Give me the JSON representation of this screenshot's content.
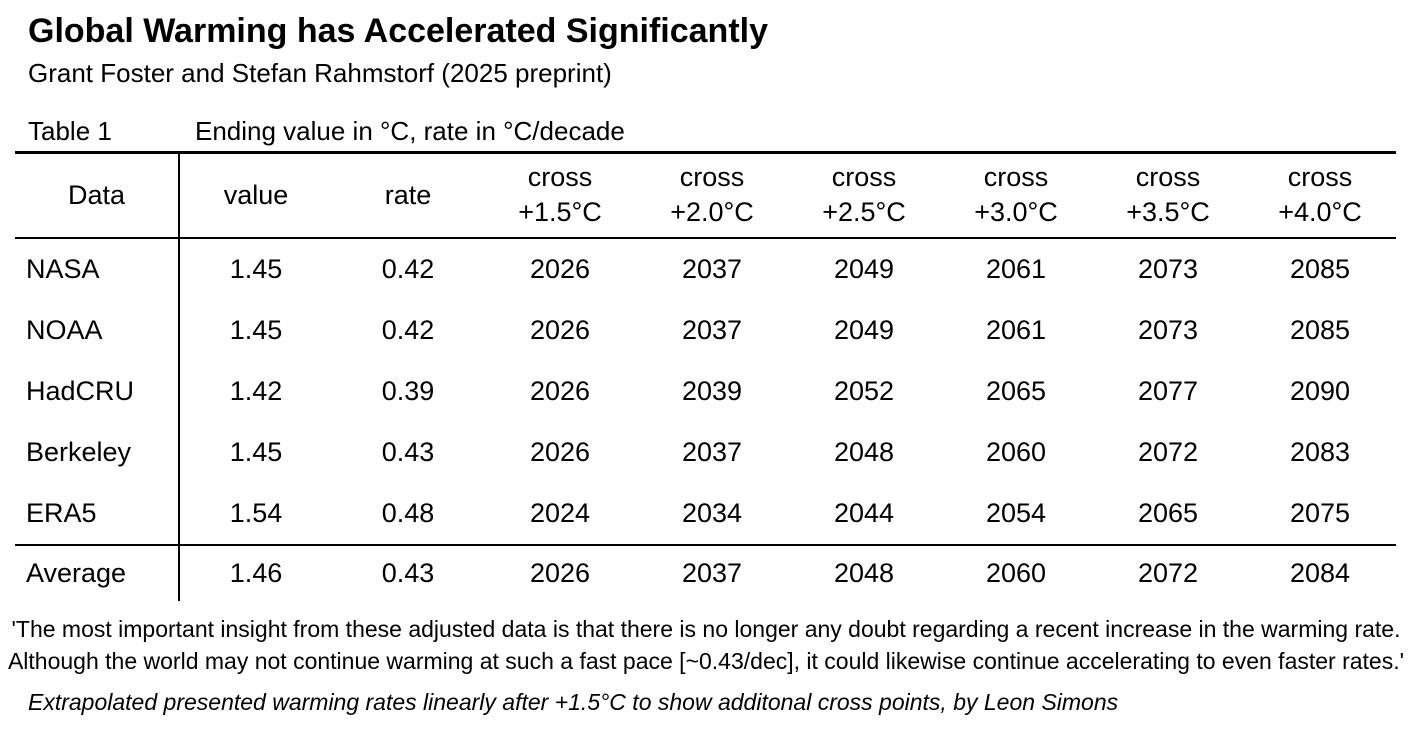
{
  "header": {
    "title": "Global Warming has Accelerated Significantly",
    "subtitle": "Grant Foster and Stefan Rahmstorf (2025 preprint)"
  },
  "table": {
    "label": "Table 1",
    "caption": "Ending value in °C, rate in °C/decade",
    "headers": [
      {
        "label": "Data"
      },
      {
        "label": "value"
      },
      {
        "label": "rate"
      },
      {
        "line1": "cross",
        "line2": "+1.5°C"
      },
      {
        "line1": "cross",
        "line2": "+2.0°C"
      },
      {
        "line1": "cross",
        "line2": "+2.5°C"
      },
      {
        "line1": "cross",
        "line2": "+3.0°C"
      },
      {
        "line1": "cross",
        "line2": "+3.5°C"
      },
      {
        "line1": "cross",
        "line2": "+4.0°C"
      }
    ],
    "rows": [
      {
        "name": "NASA",
        "values": [
          "1.45",
          "0.42",
          "2026",
          "2037",
          "2049",
          "2061",
          "2073",
          "2085"
        ]
      },
      {
        "name": "NOAA",
        "values": [
          "1.45",
          "0.42",
          "2026",
          "2037",
          "2049",
          "2061",
          "2073",
          "2085"
        ]
      },
      {
        "name": "HadCRU",
        "values": [
          "1.42",
          "0.39",
          "2026",
          "2039",
          "2052",
          "2065",
          "2077",
          "2090"
        ]
      },
      {
        "name": "Berkeley",
        "values": [
          "1.45",
          "0.43",
          "2026",
          "2037",
          "2048",
          "2060",
          "2072",
          "2083"
        ]
      },
      {
        "name": "ERA5",
        "values": [
          "1.54",
          "0.48",
          "2024",
          "2034",
          "2044",
          "2054",
          "2065",
          "2075"
        ]
      }
    ],
    "summary_row": {
      "name": "Average",
      "values": [
        "1.46",
        "0.43",
        "2026",
        "2037",
        "2048",
        "2060",
        "2072",
        "2084"
      ]
    }
  },
  "quote": {
    "line1": "'The most important insight from these adjusted data is that there is no longer any doubt regarding a recent increase in the warming rate.",
    "line2": "Although the world may not continue warming at such a fast pace [~0.43/dec], it could likewise continue accelerating to even faster rates.'"
  },
  "footnote": {
    "text": "Extrapolated presented warming rates linearly after +1.5°C to show additonal cross points, by Leon Simons"
  },
  "colors": {
    "text": "#000000",
    "background": "#ffffff",
    "rule": "#000000"
  },
  "chart_data": {
    "type": "table",
    "title": "Table 1 — Ending value in °C, rate in °C/decade",
    "columns": [
      "Data",
      "value",
      "rate",
      "cross +1.5°C",
      "cross +2.0°C",
      "cross +2.5°C",
      "cross +3.0°C",
      "cross +3.5°C",
      "cross +4.0°C"
    ],
    "rows": [
      [
        "NASA",
        1.45,
        0.42,
        2026,
        2037,
        2049,
        2061,
        2073,
        2085
      ],
      [
        "NOAA",
        1.45,
        0.42,
        2026,
        2037,
        2049,
        2061,
        2073,
        2085
      ],
      [
        "HadCRU",
        1.42,
        0.39,
        2026,
        2039,
        2052,
        2065,
        2077,
        2090
      ],
      [
        "Berkeley",
        1.45,
        0.43,
        2026,
        2037,
        2048,
        2060,
        2072,
        2083
      ],
      [
        "ERA5",
        1.54,
        0.48,
        2024,
        2034,
        2044,
        2054,
        2065,
        2075
      ],
      [
        "Average",
        1.46,
        0.43,
        2026,
        2037,
        2048,
        2060,
        2072,
        2084
      ]
    ]
  }
}
